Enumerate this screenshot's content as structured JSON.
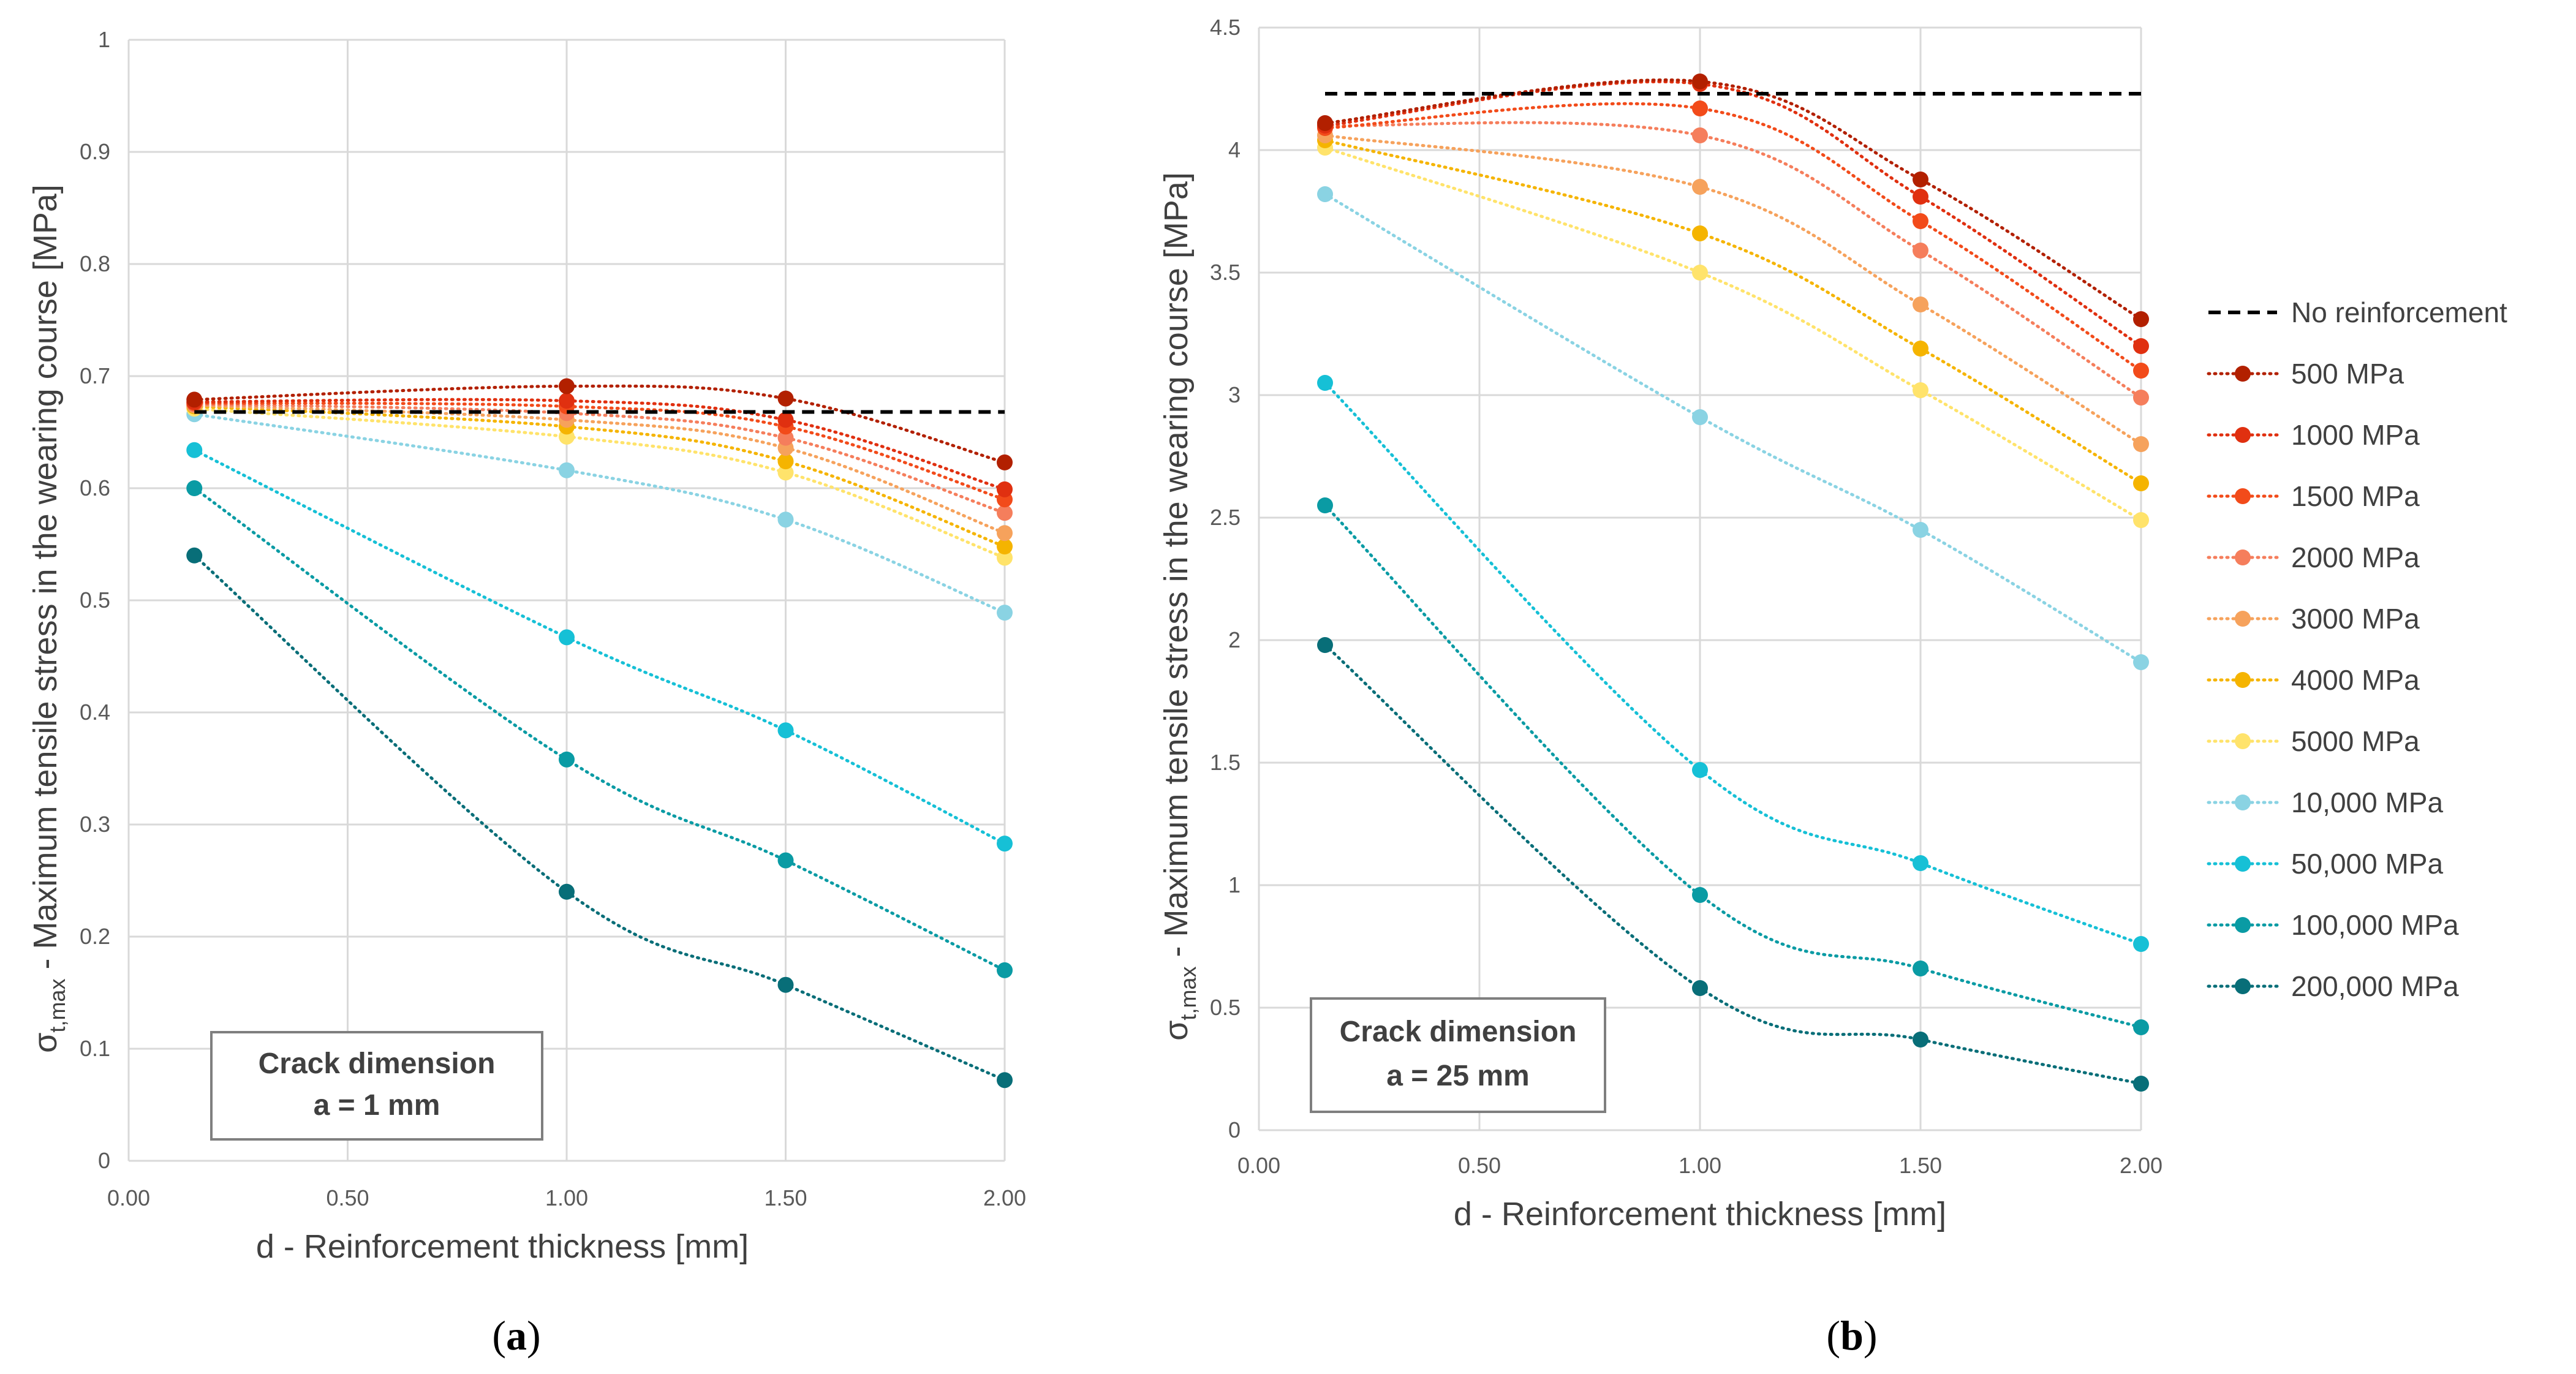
{
  "figure": {
    "captions": [
      "a",
      "b"
    ],
    "legend_title_entry": "No reinforcement"
  },
  "colors": {
    "grid": "#d9d9d9",
    "axis_text": "#595959",
    "baseline": "#000000",
    "series": {
      "500 MPa": "#b22000",
      "1000 MPa": "#e03010",
      "1500 MPa": "#f24b1a",
      "2000 MPa": "#f57e5c",
      "3000 MPa": "#f6a25c",
      "4000 MPa": "#f5b400",
      "5000 MPa": "#ffe36b",
      "10,000 MPa": "#8ad3e3",
      "50,000  MPa": "#16c0d6",
      "100,000  MPa": "#0a9ba4",
      "200,000 MPa": "#086e78"
    }
  },
  "chart_data": [
    {
      "id": "a",
      "type": "line",
      "xlabel": "d - Reinforcement thickness [mm]",
      "ylabel_main": "σ",
      "ylabel_sub": "t,max",
      "ylabel_rest": " - Maximum tensile stress in the wearing course [MPa]",
      "xlim": [
        0,
        2
      ],
      "ylim": [
        0,
        1
      ],
      "xticks": [
        "0.00",
        "0.50",
        "1.00",
        "1.50",
        "2.00"
      ],
      "xtick_values": [
        0,
        0.5,
        1,
        1.5,
        2
      ],
      "yticks": [
        "0",
        "0.1",
        "0.2",
        "0.3",
        "0.4",
        "0.5",
        "0.6",
        "0.7",
        "0.8",
        "0.9",
        "1"
      ],
      "ytick_values": [
        0,
        0.1,
        0.2,
        0.3,
        0.4,
        0.5,
        0.6,
        0.7,
        0.8,
        0.9,
        1
      ],
      "annotation": [
        "Crack dimension",
        "a = 1 mm"
      ],
      "baseline": {
        "name": "No reinforcement",
        "x": [
          0.15,
          2.0
        ],
        "y": [
          0.668,
          0.668
        ]
      },
      "x": [
        0.15,
        1.0,
        1.5,
        2.0
      ],
      "series": [
        {
          "name": "500 MPa",
          "values": [
            0.679,
            0.691,
            0.68,
            0.623
          ]
        },
        {
          "name": "1000 MPa",
          "values": [
            0.677,
            0.678,
            0.661,
            0.599
          ]
        },
        {
          "name": "1500 MPa",
          "values": [
            0.676,
            0.673,
            0.655,
            0.59
          ]
        },
        {
          "name": "2000 MPa",
          "values": [
            0.675,
            0.667,
            0.645,
            0.578
          ]
        },
        {
          "name": "3000 MPa",
          "values": [
            0.674,
            0.661,
            0.636,
            0.56
          ]
        },
        {
          "name": "4000 MPa",
          "values": [
            0.673,
            0.655,
            0.624,
            0.548
          ]
        },
        {
          "name": "5000 MPa",
          "values": [
            0.671,
            0.646,
            0.614,
            0.538
          ]
        },
        {
          "name": "10,000 MPa",
          "values": [
            0.666,
            0.616,
            0.572,
            0.489
          ]
        },
        {
          "name": "50,000  MPa",
          "values": [
            0.634,
            0.467,
            0.384,
            0.283
          ]
        },
        {
          "name": "100,000  MPa",
          "values": [
            0.6,
            0.358,
            0.268,
            0.17
          ]
        },
        {
          "name": "200,000 MPa",
          "values": [
            0.54,
            0.24,
            0.157,
            0.072
          ]
        }
      ]
    },
    {
      "id": "b",
      "type": "line",
      "xlabel": "d - Reinforcement thickness [mm]",
      "ylabel_main": "σ",
      "ylabel_sub": "t,max",
      "ylabel_rest": " - Maximum tensile stress in the wearing course [MPa]",
      "xlim": [
        0,
        2
      ],
      "ylim": [
        0,
        4.5
      ],
      "xticks": [
        "0.00",
        "0.50",
        "1.00",
        "1.50",
        "2.00"
      ],
      "xtick_values": [
        0,
        0.5,
        1,
        1.5,
        2
      ],
      "yticks": [
        "0",
        "0.5",
        "1",
        "1.5",
        "2",
        "2.5",
        "3",
        "3.5",
        "4",
        "4.5"
      ],
      "ytick_values": [
        0,
        0.5,
        1,
        1.5,
        2,
        2.5,
        3,
        3.5,
        4,
        4.5
      ],
      "annotation": [
        "Crack dimension",
        "a = 25 mm"
      ],
      "baseline": {
        "name": "No reinforcement",
        "x": [
          0.15,
          2.0
        ],
        "y": [
          4.23,
          4.23
        ]
      },
      "x": [
        0.15,
        1.0,
        1.5,
        2.0
      ],
      "series": [
        {
          "name": "500 MPa",
          "values": [
            4.11,
            4.28,
            3.88,
            3.31
          ]
        },
        {
          "name": "1000 MPa",
          "values": [
            4.1,
            4.27,
            3.81,
            3.2
          ]
        },
        {
          "name": "1500 MPa",
          "values": [
            4.09,
            4.17,
            3.71,
            3.1
          ]
        },
        {
          "name": "2000 MPa",
          "values": [
            4.1,
            4.06,
            3.59,
            2.99
          ]
        },
        {
          "name": "3000 MPa",
          "values": [
            4.06,
            3.85,
            3.37,
            2.8
          ]
        },
        {
          "name": "4000 MPa",
          "values": [
            4.04,
            3.66,
            3.19,
            2.64
          ]
        },
        {
          "name": "5000 MPa",
          "values": [
            4.01,
            3.5,
            3.02,
            2.49
          ]
        },
        {
          "name": "10,000 MPa",
          "values": [
            3.82,
            2.91,
            2.45,
            1.91
          ]
        },
        {
          "name": "50,000  MPa",
          "values": [
            3.05,
            1.47,
            1.09,
            0.76
          ]
        },
        {
          "name": "100,000  MPa",
          "values": [
            2.55,
            0.96,
            0.66,
            0.42
          ]
        },
        {
          "name": "200,000 MPa",
          "values": [
            1.98,
            0.58,
            0.37,
            0.19
          ]
        }
      ]
    }
  ]
}
